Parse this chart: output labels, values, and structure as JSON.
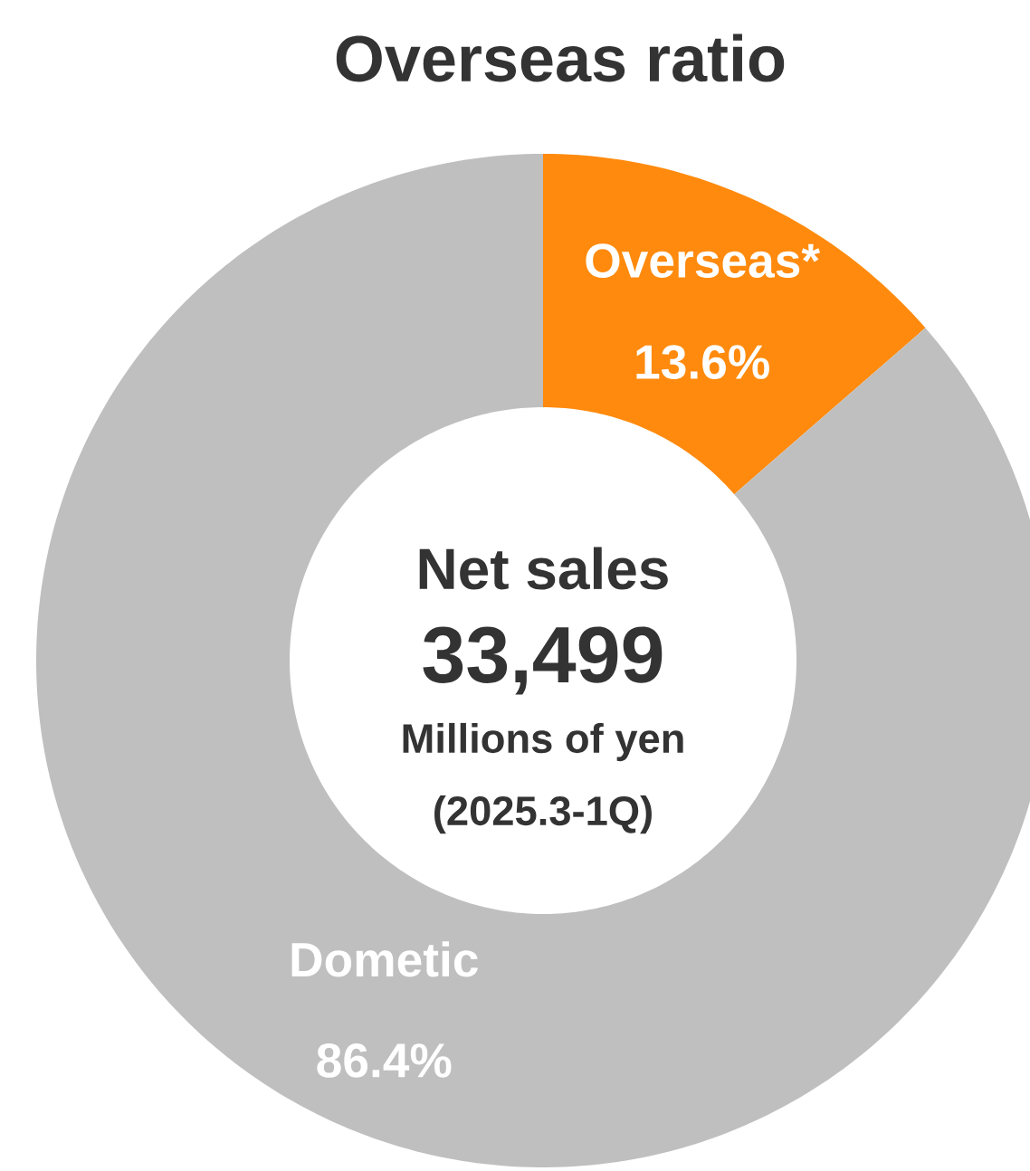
{
  "chart_data": {
    "type": "donut",
    "title": "Overseas ratio",
    "categories": [
      "Overseas*",
      "Dometic"
    ],
    "values": [
      13.6,
      86.4
    ],
    "colors": [
      "#ff8a0d",
      "#bfbfbf"
    ],
    "value_labels": [
      "13.6%",
      "86.4%"
    ],
    "annotations": [
      "Net sales",
      "33,499",
      "Millions of yen",
      "(2025.3-1Q)"
    ]
  }
}
